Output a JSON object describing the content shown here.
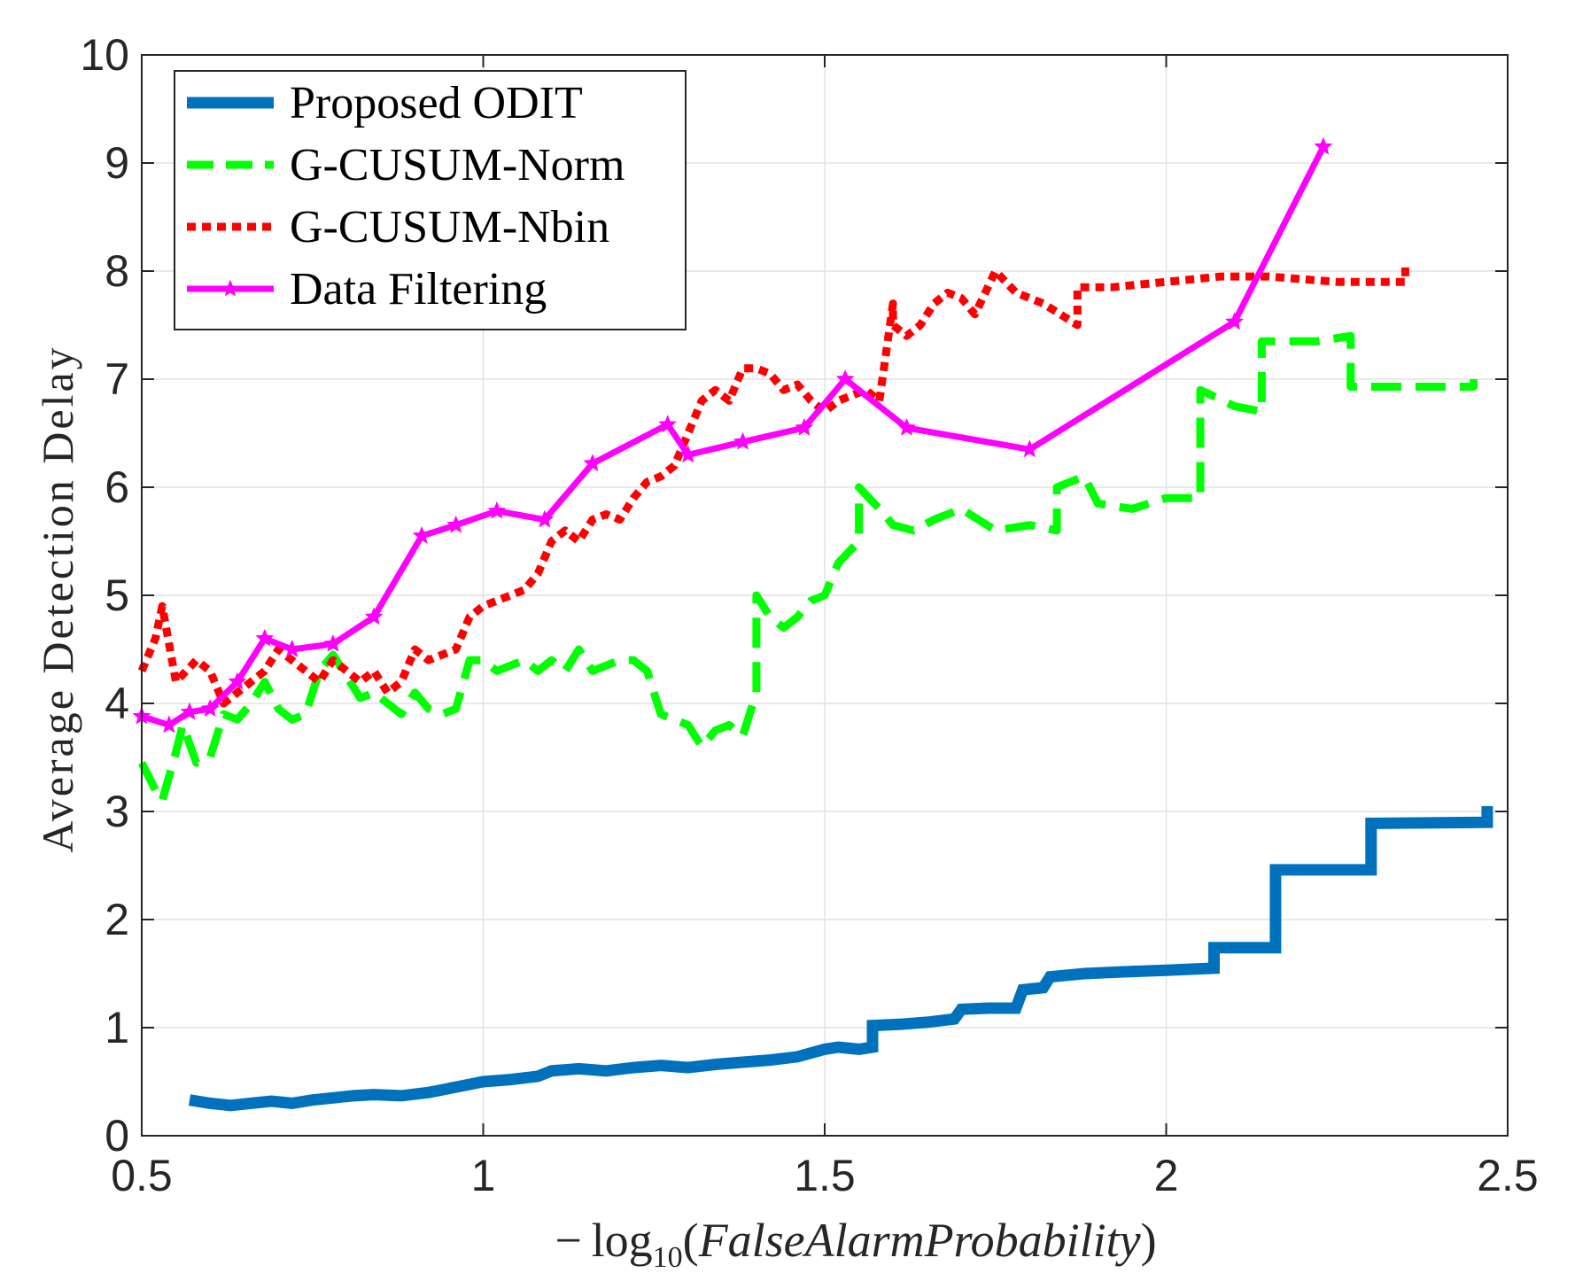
{
  "chart_data": {
    "type": "line",
    "title": "",
    "xlabel_parts": [
      "− log",
      "10",
      "(",
      "FalseAlarmProbability",
      ")"
    ],
    "ylabel": "Average Detection Delay",
    "xlim": [
      0.5,
      2.5
    ],
    "ylim": [
      0,
      10
    ],
    "xticks": [
      0.5,
      1,
      1.5,
      2,
      2.5
    ],
    "xtick_labels": [
      "0.5",
      "1",
      "1.5",
      "2",
      "2.5"
    ],
    "yticks": [
      0,
      1,
      2,
      3,
      4,
      5,
      6,
      7,
      8,
      9,
      10
    ],
    "ytick_labels": [
      "0",
      "1",
      "2",
      "3",
      "4",
      "5",
      "6",
      "7",
      "8",
      "9",
      "10"
    ],
    "grid": true,
    "legend_position": "top-left",
    "series": [
      {
        "name": "Proposed ODIT",
        "color": "#0072BD",
        "style": "solid-thick",
        "x": [
          0.57,
          0.6,
          0.63,
          0.66,
          0.69,
          0.72,
          0.75,
          0.78,
          0.81,
          0.84,
          0.88,
          0.92,
          0.96,
          1.0,
          1.04,
          1.08,
          1.1,
          1.14,
          1.18,
          1.22,
          1.26,
          1.3,
          1.34,
          1.38,
          1.42,
          1.46,
          1.5,
          1.52,
          1.55,
          1.57,
          1.57,
          1.61,
          1.65,
          1.69,
          1.7,
          1.74,
          1.78,
          1.79,
          1.82,
          1.83,
          1.88,
          1.95,
          2.0,
          2.07,
          2.07,
          2.16,
          2.16,
          2.3,
          2.3,
          2.47,
          2.47
        ],
        "y": [
          0.33,
          0.3,
          0.28,
          0.3,
          0.32,
          0.3,
          0.33,
          0.35,
          0.37,
          0.38,
          0.37,
          0.4,
          0.45,
          0.5,
          0.52,
          0.55,
          0.6,
          0.62,
          0.6,
          0.63,
          0.65,
          0.63,
          0.66,
          0.68,
          0.7,
          0.73,
          0.8,
          0.82,
          0.8,
          0.82,
          1.02,
          1.03,
          1.05,
          1.08,
          1.17,
          1.18,
          1.18,
          1.35,
          1.37,
          1.47,
          1.5,
          1.52,
          1.53,
          1.55,
          1.74,
          1.74,
          2.46,
          2.46,
          2.89,
          2.9,
          3.05
        ]
      },
      {
        "name": "G-CUSUM-Norm",
        "color": "#00FF00",
        "style": "dashed",
        "x": [
          0.5,
          0.52,
          0.53,
          0.55,
          0.56,
          0.58,
          0.6,
          0.62,
          0.64,
          0.66,
          0.68,
          0.7,
          0.72,
          0.74,
          0.76,
          0.78,
          0.8,
          0.82,
          0.84,
          0.86,
          0.88,
          0.9,
          0.92,
          0.94,
          0.96,
          0.98,
          1.0,
          1.02,
          1.04,
          1.06,
          1.08,
          1.1,
          1.12,
          1.14,
          1.16,
          1.18,
          1.2,
          1.22,
          1.24,
          1.26,
          1.28,
          1.3,
          1.32,
          1.34,
          1.36,
          1.38,
          1.4,
          1.4,
          1.42,
          1.44,
          1.46,
          1.48,
          1.5,
          1.52,
          1.55,
          1.55,
          1.58,
          1.6,
          1.63,
          1.66,
          1.7,
          1.75,
          1.8,
          1.84,
          1.84,
          1.88,
          1.9,
          1.95,
          2.0,
          2.05,
          2.05,
          2.1,
          2.14,
          2.14,
          2.18,
          2.22,
          2.27,
          2.27,
          2.35,
          2.45,
          2.45
        ],
        "y": [
          3.45,
          3.2,
          3.1,
          3.55,
          3.8,
          3.45,
          3.5,
          3.9,
          3.85,
          4.0,
          4.2,
          3.95,
          3.85,
          3.9,
          4.3,
          4.45,
          4.25,
          4.05,
          4.1,
          4.0,
          3.9,
          4.1,
          3.95,
          3.9,
          3.95,
          4.4,
          4.4,
          4.3,
          4.35,
          4.4,
          4.3,
          4.4,
          4.3,
          4.5,
          4.3,
          4.35,
          4.4,
          4.4,
          4.3,
          3.9,
          3.85,
          3.8,
          3.6,
          3.75,
          3.8,
          3.7,
          4.1,
          5.0,
          4.8,
          4.7,
          4.8,
          4.95,
          5.0,
          5.3,
          5.5,
          6.0,
          5.8,
          5.65,
          5.6,
          5.7,
          5.8,
          5.6,
          5.65,
          5.6,
          6.0,
          6.1,
          5.85,
          5.8,
          5.9,
          5.9,
          6.9,
          6.75,
          6.7,
          7.35,
          7.35,
          7.35,
          7.4,
          6.93,
          6.93,
          6.93,
          7.0
        ]
      },
      {
        "name": "G-CUSUM-Nbin",
        "color": "#FF0000",
        "style": "dotted",
        "x": [
          0.5,
          0.52,
          0.53,
          0.55,
          0.58,
          0.6,
          0.62,
          0.64,
          0.66,
          0.68,
          0.7,
          0.72,
          0.74,
          0.76,
          0.78,
          0.8,
          0.82,
          0.84,
          0.86,
          0.88,
          0.9,
          0.92,
          0.94,
          0.96,
          0.98,
          1.0,
          1.02,
          1.04,
          1.06,
          1.08,
          1.1,
          1.12,
          1.14,
          1.16,
          1.18,
          1.2,
          1.22,
          1.24,
          1.26,
          1.28,
          1.3,
          1.32,
          1.34,
          1.36,
          1.38,
          1.4,
          1.42,
          1.44,
          1.46,
          1.48,
          1.5,
          1.52,
          1.54,
          1.56,
          1.58,
          1.6,
          1.6,
          1.62,
          1.64,
          1.66,
          1.68,
          1.7,
          1.72,
          1.75,
          1.78,
          1.82,
          1.87,
          1.87,
          1.92,
          2.0,
          2.08,
          2.15,
          2.25,
          2.35,
          2.35
        ],
        "y": [
          4.3,
          4.6,
          4.9,
          4.2,
          4.4,
          4.3,
          4.0,
          4.1,
          4.2,
          4.3,
          4.5,
          4.4,
          4.3,
          4.2,
          4.4,
          4.3,
          4.2,
          4.3,
          4.1,
          4.2,
          4.5,
          4.4,
          4.45,
          4.5,
          4.8,
          4.9,
          4.95,
          5.0,
          5.05,
          5.2,
          5.5,
          5.6,
          5.5,
          5.7,
          5.75,
          5.7,
          5.9,
          6.05,
          6.1,
          6.2,
          6.5,
          6.8,
          6.9,
          6.8,
          7.1,
          7.1,
          7.05,
          6.9,
          6.95,
          6.8,
          6.7,
          6.8,
          6.85,
          6.9,
          6.8,
          7.7,
          7.5,
          7.4,
          7.5,
          7.7,
          7.8,
          7.75,
          7.6,
          8.0,
          7.8,
          7.7,
          7.5,
          7.85,
          7.85,
          7.9,
          7.95,
          7.95,
          7.9,
          7.9,
          8.05
        ]
      },
      {
        "name": "Data Filtering",
        "color": "#FF00FF",
        "style": "solid-star",
        "x": [
          0.5,
          0.54,
          0.57,
          0.6,
          0.64,
          0.68,
          0.72,
          0.78,
          0.84,
          0.91,
          0.96,
          1.02,
          1.09,
          1.16,
          1.27,
          1.3,
          1.38,
          1.47,
          1.53,
          1.62,
          1.8,
          2.1,
          2.23
        ],
        "y": [
          3.88,
          3.8,
          3.92,
          3.95,
          4.2,
          4.6,
          4.5,
          4.55,
          4.8,
          5.55,
          5.65,
          5.78,
          5.7,
          6.22,
          6.58,
          6.3,
          6.42,
          6.55,
          7.0,
          6.55,
          6.35,
          7.53,
          9.15
        ]
      }
    ]
  }
}
